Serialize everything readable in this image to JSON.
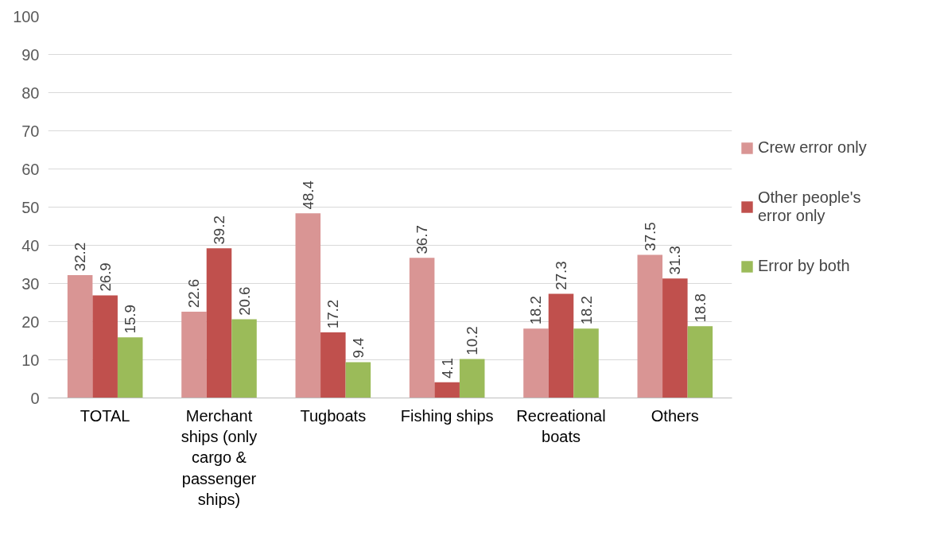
{
  "chart_data": {
    "type": "bar",
    "categories": [
      "TOTAL",
      "Merchant ships (only cargo & passenger ships)",
      "Tugboats",
      "Fishing ships",
      "Recreational boats",
      "Others"
    ],
    "series": [
      {
        "name": "Crew error only",
        "color": "#d99594",
        "values": [
          32.2,
          22.6,
          48.4,
          36.7,
          18.2,
          37.5
        ]
      },
      {
        "name": "Other people's error only",
        "color": "#c0504d",
        "values": [
          26.9,
          39.2,
          17.2,
          4.1,
          27.3,
          31.3
        ]
      },
      {
        "name": "Error by both",
        "color": "#9bbb59",
        "values": [
          15.9,
          20.6,
          9.4,
          10.2,
          18.2,
          18.8
        ]
      }
    ],
    "ylim": [
      0,
      100
    ],
    "yticks": [
      0,
      10,
      20,
      30,
      40,
      50,
      60,
      70,
      80,
      90,
      100
    ],
    "grid": "y",
    "legend": "right",
    "data_labels": true
  }
}
